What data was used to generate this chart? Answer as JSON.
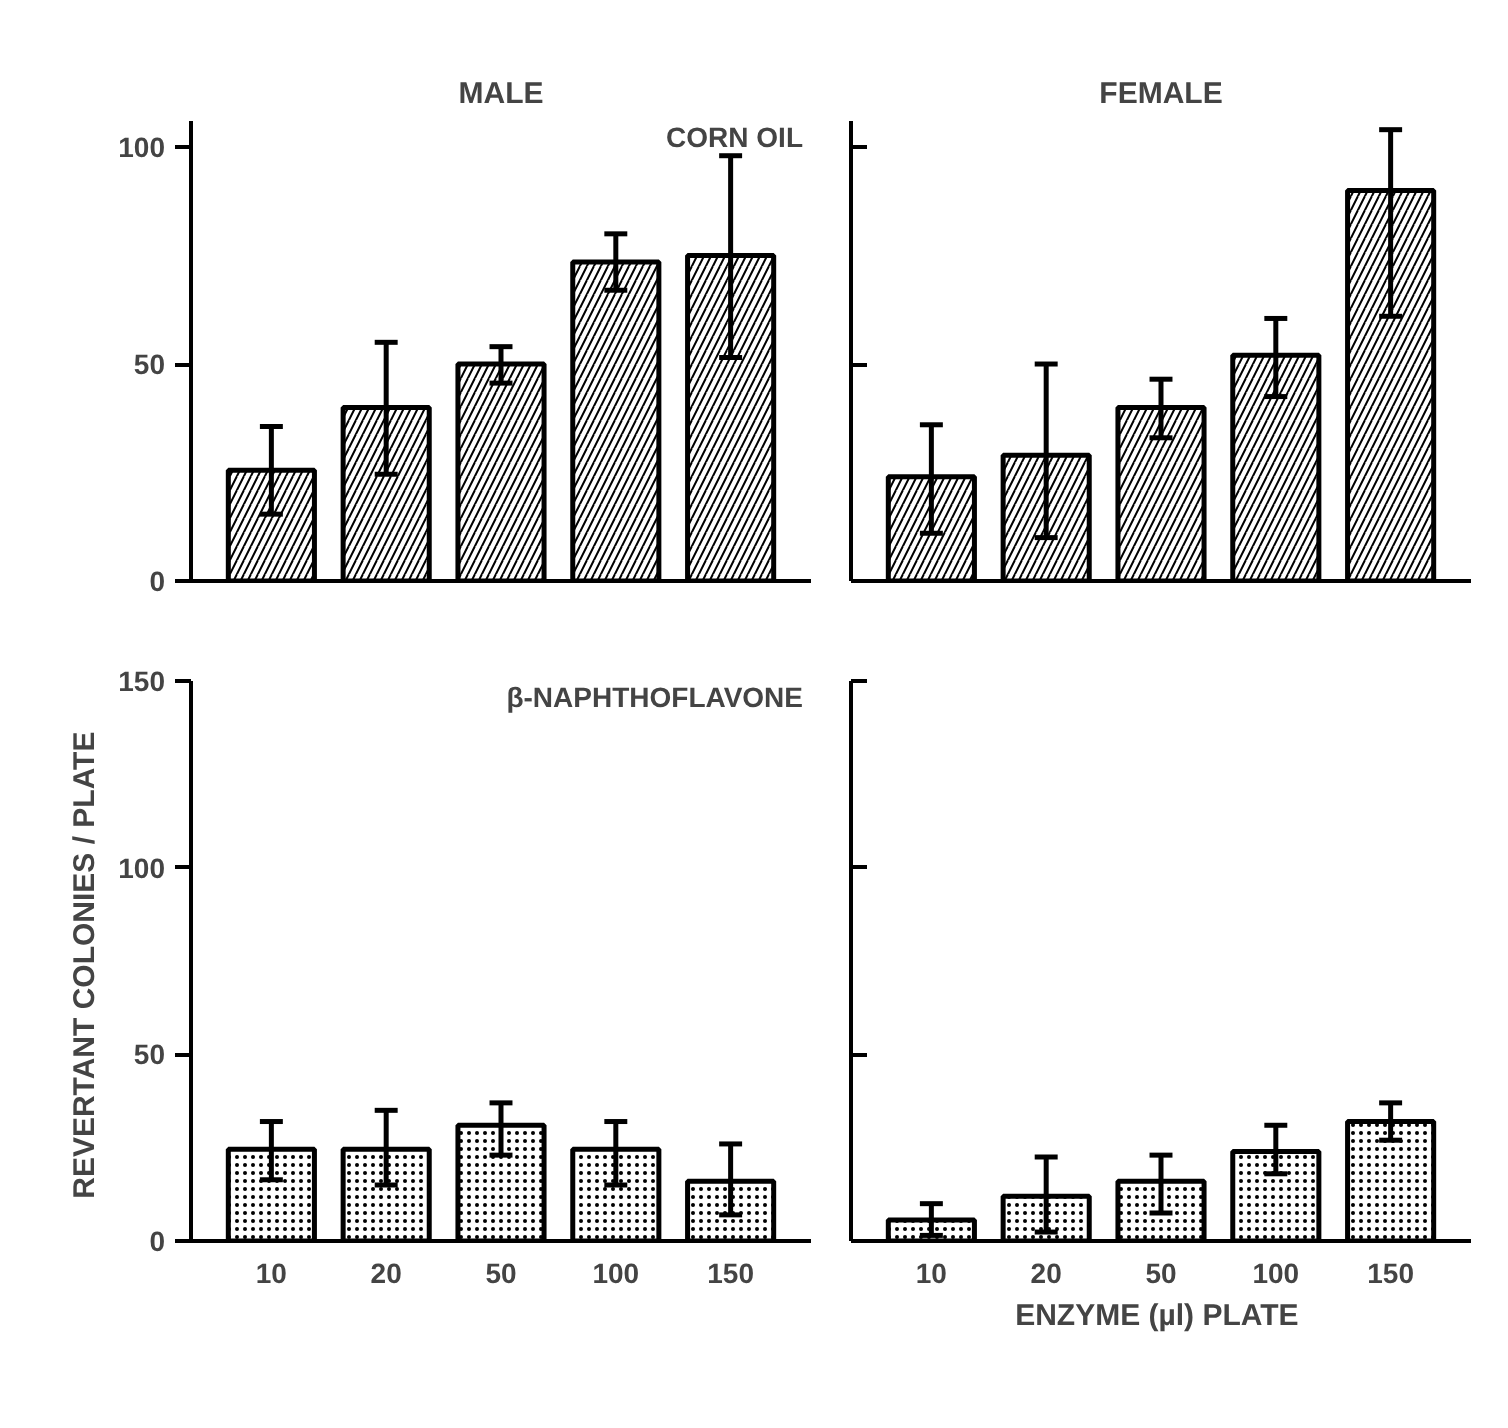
{
  "chart_data": [
    {
      "type": "bar",
      "title": "MALE",
      "annotations": [
        "CORN OIL"
      ],
      "categories": [
        "10",
        "20",
        "50",
        "100",
        "150"
      ],
      "series": [
        {
          "color": "#ffffff",
          "values": [
            25.5,
            40,
            50,
            73.5,
            75
          ],
          "errors": [
            [
              15.4,
              35.6
            ],
            [
              24.6,
              55
            ],
            [
              45.6,
              54
            ],
            [
              67,
              80
            ],
            [
              51.5,
              98
            ]
          ]
        }
      ],
      "ylim": [
        0,
        106
      ],
      "yticks": [
        0,
        50,
        100
      ],
      "tick_labels": "y"
    },
    {
      "type": "bar",
      "title": "FEMALE",
      "categories": [
        "10",
        "20",
        "50",
        "100",
        "150"
      ],
      "series": [
        {
          "color": "#ffffff",
          "values": [
            24,
            29,
            40,
            52,
            90
          ],
          "errors": [
            [
              11,
              36
            ],
            [
              10,
              50
            ],
            [
              33,
              46.5
            ],
            [
              42.5,
              60.5
            ],
            [
              61,
              104
            ]
          ]
        }
      ],
      "ylim": [
        0,
        106
      ],
      "yticks": [
        0,
        50,
        100
      ],
      "tick_labels": false
    },
    {
      "type": "bar",
      "ylabel": "REVERTANT  COLONIES / PLATE",
      "annotations": [
        "β-NAPHTHOFLAVONE"
      ],
      "categories": [
        "10",
        "20",
        "50",
        "100",
        "150"
      ],
      "series": [
        {
          "color": "#ffffff",
          "values": [
            24.6,
            24.6,
            31,
            24.6,
            16
          ],
          "errors": [
            [
              16.4,
              32
            ],
            [
              15,
              35
            ],
            [
              23,
              37
            ],
            [
              15,
              32
            ],
            [
              7,
              26
            ]
          ]
        }
      ],
      "ylim": [
        0,
        150
      ],
      "yticks": [
        0,
        50,
        100,
        150
      ]
    },
    {
      "type": "bar",
      "xlabel": "ENZYME (µl)  PLATE",
      "categories": [
        "10",
        "20",
        "50",
        "100",
        "150"
      ],
      "series": [
        {
          "color": "#ffffff",
          "values": [
            5.6,
            12,
            16,
            24,
            32
          ],
          "errors": [
            [
              1.5,
              10
            ],
            [
              2.4,
              22.5
            ],
            [
              7.5,
              23
            ],
            [
              18,
              31
            ],
            [
              27,
              37
            ]
          ]
        }
      ],
      "ylim": [
        0,
        150
      ],
      "yticks": [
        0,
        50,
        100,
        150
      ],
      "tick_labels": "x"
    }
  ]
}
